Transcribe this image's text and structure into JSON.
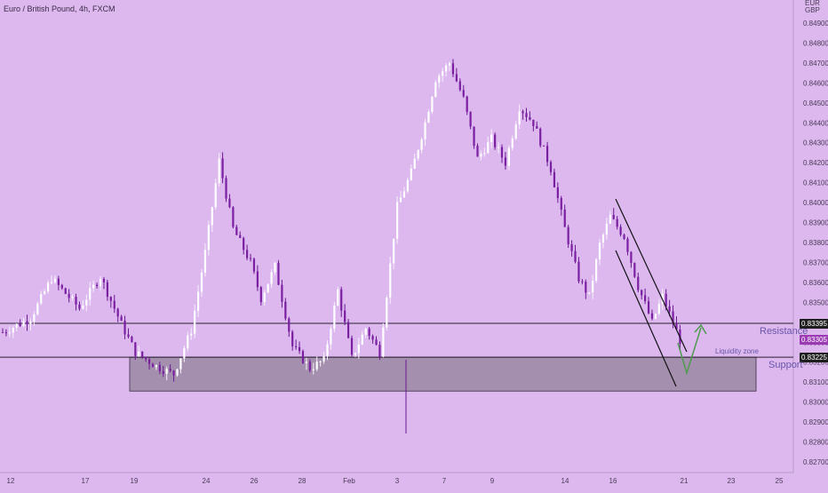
{
  "header": {
    "title": "Euro / British Pound, 4h, FXCM",
    "currency_top": "EUR",
    "currency_bottom": "GBP"
  },
  "chart_data": {
    "type": "candlestick",
    "title": "Euro / British Pound, 4h, FXCM",
    "x_ticks": [
      "12",
      "17",
      "19",
      "24",
      "26",
      "28",
      "Feb",
      "3",
      "7",
      "9",
      "14",
      "16",
      "21",
      "23",
      "25"
    ],
    "y_ticks": [
      "0.84900",
      "0.84800",
      "0.84700",
      "0.84600",
      "0.84500",
      "0.84400",
      "0.84300",
      "0.84200",
      "0.84100",
      "0.84000",
      "0.83900",
      "0.83800",
      "0.83700",
      "0.83600",
      "0.83500",
      "0.83400",
      "0.83300",
      "0.83200",
      "0.83100",
      "0.83000",
      "0.82900",
      "0.82800",
      "0.82700"
    ],
    "ylim": [
      0.8265,
      0.85
    ],
    "grid": false,
    "price_labels": {
      "resistance_value": "0.83395",
      "current_value": "0.83305",
      "support_value": "0.83225"
    },
    "annotations": {
      "resistance": "Resistance",
      "support": "Support",
      "liquidity_zone": "Liquidity zone"
    },
    "levels": {
      "resistance": 0.83395,
      "support": 0.83225,
      "zone_low": 0.83055
    },
    "waypoints": [
      [
        0,
        0.8335
      ],
      [
        8,
        0.8342
      ],
      [
        14,
        0.8362
      ],
      [
        22,
        0.8347
      ],
      [
        28,
        0.8363
      ],
      [
        34,
        0.8339
      ],
      [
        38,
        0.8325
      ],
      [
        44,
        0.8318
      ],
      [
        49,
        0.8314
      ],
      [
        54,
        0.8336
      ],
      [
        58,
        0.8375
      ],
      [
        62,
        0.8421
      ],
      [
        66,
        0.8387
      ],
      [
        71,
        0.837
      ],
      [
        74,
        0.8352
      ],
      [
        78,
        0.8368
      ],
      [
        83,
        0.8328
      ],
      [
        88,
        0.8317
      ],
      [
        92,
        0.8321
      ],
      [
        96,
        0.8356
      ],
      [
        100,
        0.8322
      ],
      [
        104,
        0.8337
      ],
      [
        108,
        0.8325
      ],
      [
        113,
        0.8398
      ],
      [
        117,
        0.8415
      ],
      [
        121,
        0.844
      ],
      [
        124,
        0.8462
      ],
      [
        128,
        0.847
      ],
      [
        132,
        0.8452
      ],
      [
        136,
        0.8422
      ],
      [
        140,
        0.8432
      ],
      [
        144,
        0.842
      ],
      [
        148,
        0.8448
      ],
      [
        152,
        0.844
      ],
      [
        157,
        0.8417
      ],
      [
        161,
        0.8387
      ],
      [
        165,
        0.8362
      ],
      [
        168,
        0.8353
      ],
      [
        171,
        0.8379
      ],
      [
        174,
        0.8393
      ],
      [
        178,
        0.8383
      ],
      [
        182,
        0.8358
      ],
      [
        186,
        0.834
      ],
      [
        189,
        0.8353
      ],
      [
        192,
        0.834
      ],
      [
        194,
        0.8331
      ]
    ]
  }
}
